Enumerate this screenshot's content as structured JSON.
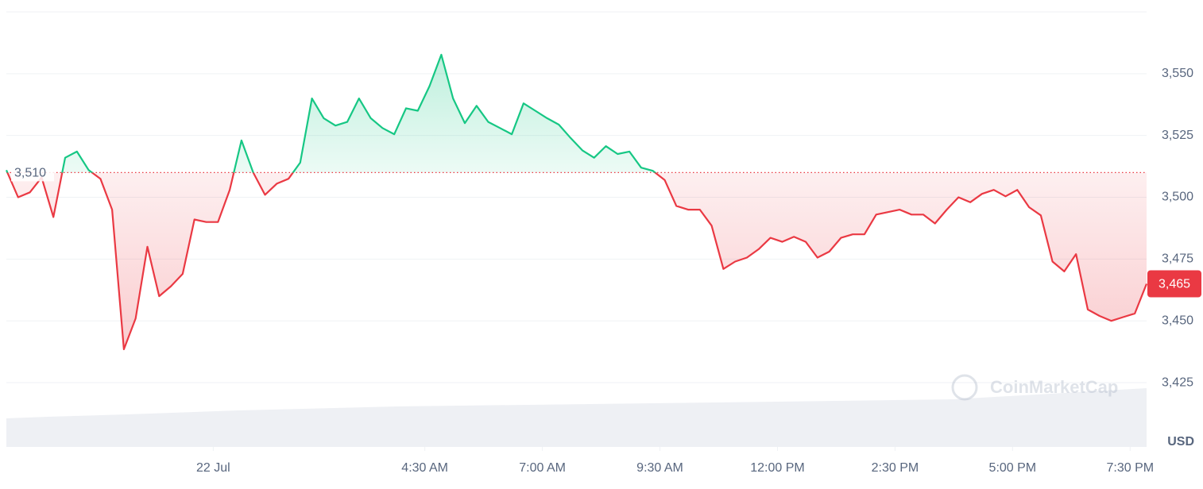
{
  "chart_data": {
    "type": "line",
    "x": [
      -4.4,
      -4.15,
      -3.9,
      -3.65,
      -3.4,
      -3.15,
      -2.9,
      -2.65,
      -2.4,
      -2.15,
      -1.9,
      -1.65,
      -1.4,
      -1.15,
      -0.9,
      -0.65,
      -0.4,
      -0.15,
      0.1,
      0.35,
      0.6,
      0.85,
      1.1,
      1.35,
      1.6,
      1.85,
      2.1,
      2.35,
      2.6,
      2.85,
      3.1,
      3.35,
      3.6,
      3.85,
      4.1,
      4.35,
      4.6,
      4.85,
      5.1,
      5.35,
      5.6,
      5.85,
      6.1,
      6.35,
      6.6,
      6.85,
      7.1,
      7.35,
      7.6,
      7.85,
      8.1,
      8.35,
      8.6,
      8.85,
      9.1,
      9.35,
      9.6,
      9.85,
      10.1,
      10.35,
      10.6,
      10.85,
      11.1,
      11.35,
      11.6,
      11.85,
      12.1,
      12.35,
      12.6,
      12.85,
      13.1,
      13.35,
      13.6,
      13.85,
      14.1,
      14.35,
      14.6,
      14.85,
      15.1,
      15.35,
      15.6,
      15.85,
      16.1,
      16.35,
      16.6,
      16.85,
      17.1,
      17.35,
      17.6,
      17.85,
      18.1,
      18.35,
      18.6,
      18.85,
      19.1,
      19.35,
      19.6,
      19.85
    ],
    "values": [
      3511,
      3500,
      3502,
      3508,
      3492,
      3516,
      3518.5,
      3511,
      3507.5,
      3495,
      3438.5,
      3451,
      3480,
      3460,
      3464,
      3469,
      3491,
      3490,
      3490,
      3503,
      3523,
      3510,
      3501,
      3505.5,
      3507.5,
      3514,
      3540,
      3532,
      3529,
      3530.5,
      3540,
      3532,
      3528,
      3525.5,
      3536,
      3535,
      3545,
      3557.7,
      3540,
      3530,
      3537,
      3530.5,
      3528,
      3525.5,
      3538,
      3535,
      3532,
      3529.4,
      3524,
      3519,
      3516,
      3520.7,
      3517.5,
      3518.5,
      3512,
      3510.7,
      3507,
      3496.5,
      3495,
      3495,
      3488.5,
      3471,
      3474,
      3475.6,
      3479,
      3483.6,
      3482,
      3484,
      3482,
      3475.6,
      3478,
      3483.6,
      3485,
      3485,
      3493,
      3494,
      3495,
      3493,
      3493,
      3489.4,
      3495,
      3500,
      3498,
      3501.4,
      3503,
      3500.4,
      3503,
      3496,
      3492.7,
      3474,
      3470,
      3477,
      3454.6,
      3452,
      3450,
      3451.5,
      3453,
      3465
    ],
    "up_color": "#16c784",
    "down_color": "#ea3943",
    "reference": {
      "value": 3510,
      "label": "3,510"
    },
    "current": {
      "value": 3465,
      "label": "3,465"
    },
    "xlim": [
      -4.4,
      19.85
    ],
    "xticks": [
      {
        "value": 0,
        "label": "22 Jul"
      },
      {
        "value": 4.5,
        "label": "4:30 AM"
      },
      {
        "value": 7,
        "label": "7:00 AM"
      },
      {
        "value": 9.5,
        "label": "9:30 AM"
      },
      {
        "value": 12,
        "label": "12:00 PM"
      },
      {
        "value": 14.5,
        "label": "2:30 PM"
      },
      {
        "value": 17,
        "label": "5:00 PM"
      },
      {
        "value": 19.5,
        "label": "7:30 PM"
      }
    ],
    "ylim": [
      3399,
      3575
    ],
    "yticks": [
      {
        "value": 3425,
        "label": "3,425"
      },
      {
        "value": 3450,
        "label": "3,450"
      },
      {
        "value": 3475,
        "label": "3,475"
      },
      {
        "value": 3500,
        "label": "3,500"
      },
      {
        "value": 3525,
        "label": "3,525"
      },
      {
        "value": 3550,
        "label": "3,550"
      }
    ],
    "grid": true,
    "currency": "USD",
    "watermark": "CoinMarketCap"
  }
}
